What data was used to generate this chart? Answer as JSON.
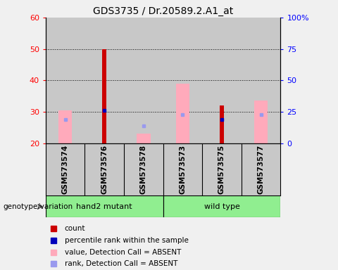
{
  "title": "GDS3735 / Dr.20589.2.A1_at",
  "samples": [
    "GSM573574",
    "GSM573576",
    "GSM573578",
    "GSM573573",
    "GSM573575",
    "GSM573577"
  ],
  "group_labels": [
    "hand2 mutant",
    "wild type"
  ],
  "group_color": "#90ee90",
  "ylim": [
    20,
    60
  ],
  "y2lim": [
    0,
    100
  ],
  "yticks": [
    20,
    30,
    40,
    50,
    60
  ],
  "y2ticks": [
    0,
    25,
    50,
    75,
    100
  ],
  "y2tick_labels": [
    "0",
    "25",
    "50",
    "75",
    "100%"
  ],
  "red_bars": {
    "GSM573574": null,
    "GSM573576": 50,
    "GSM573578": null,
    "GSM573573": null,
    "GSM573575": 32,
    "GSM573577": null
  },
  "pink_bars": {
    "GSM573574": 30.5,
    "GSM573576": null,
    "GSM573578": 23,
    "GSM573573": 39,
    "GSM573575": null,
    "GSM573577": 33.5
  },
  "blue_dots": {
    "GSM573574": {
      "val": 27.5,
      "absent": true
    },
    "GSM573576": {
      "val": 30.5,
      "absent": false
    },
    "GSM573578": {
      "val": 25.5,
      "absent": true
    },
    "GSM573573": {
      "val": 29.0,
      "absent": true
    },
    "GSM573575": {
      "val": 27.5,
      "absent": false
    },
    "GSM573577": {
      "val": 29.0,
      "absent": true
    }
  },
  "blue_dot_color": "#0000bb",
  "red_bar_color": "#cc0000",
  "pink_bar_color": "#ffaabb",
  "light_blue_color": "#9999ee",
  "background_color": "#f0f0f0",
  "sample_bg_color": "#c8c8c8",
  "legend_items": [
    {
      "label": "count",
      "color": "#cc0000"
    },
    {
      "label": "percentile rank within the sample",
      "color": "#0000bb"
    },
    {
      "label": "value, Detection Call = ABSENT",
      "color": "#ffaabb"
    },
    {
      "label": "rank, Detection Call = ABSENT",
      "color": "#9999ee"
    }
  ]
}
